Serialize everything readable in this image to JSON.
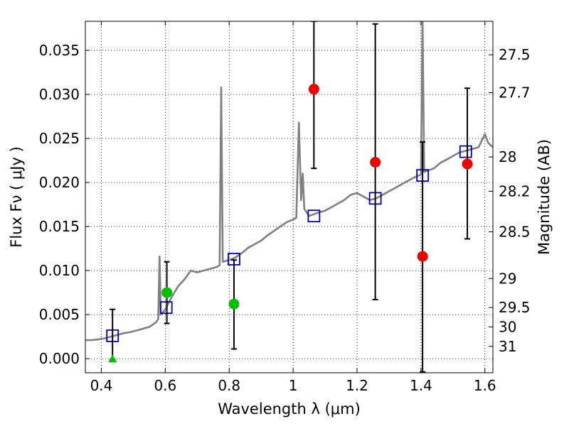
{
  "chart_data": {
    "type": "scatter",
    "title": "",
    "xlabel": "Wavelength  λ (μm)",
    "ylabel": "Flux  Fν  ( μJy )",
    "ylabel_right": "Magnitude (AB)",
    "xlim": [
      0.35,
      1.625
    ],
    "ylim": [
      -0.0016,
      0.0383
    ],
    "x_ticks": [
      0.4,
      0.6,
      0.8,
      1.0,
      1.2,
      1.4,
      1.6
    ],
    "x_tick_labels": [
      "0.4",
      "0.6",
      "0.8",
      "1",
      "1.2",
      "1.4",
      "1.6"
    ],
    "y_ticks": [
      0.0,
      0.005,
      0.01,
      0.015,
      0.02,
      0.025,
      0.03,
      0.035
    ],
    "y_tick_labels": [
      "0.000",
      "0.005",
      "0.010",
      "0.015",
      "0.020",
      "0.025",
      "0.030",
      "0.035"
    ],
    "right_ticks": [
      {
        "label": "27.5",
        "flux": 0.0345
      },
      {
        "label": "27.7",
        "flux": 0.0302
      },
      {
        "label": "28",
        "flux": 0.0229
      },
      {
        "label": "28.2",
        "flux": 0.019
      },
      {
        "label": "28.5",
        "flux": 0.0144
      },
      {
        "label": "29",
        "flux": 0.0091
      },
      {
        "label": "29.5",
        "flux": 0.0058
      },
      {
        "label": "30",
        "flux": 0.0036
      },
      {
        "label": "31",
        "flux": 0.0014
      }
    ],
    "grid": true,
    "series": [
      {
        "kind": "line",
        "color": "#808080",
        "points": [
          [
            0.35,
            0.0021
          ],
          [
            0.37,
            0.0021
          ],
          [
            0.39,
            0.0022
          ],
          [
            0.41,
            0.0023
          ],
          [
            0.43,
            0.0025
          ],
          [
            0.45,
            0.0027
          ],
          [
            0.47,
            0.0029
          ],
          [
            0.49,
            0.003
          ],
          [
            0.51,
            0.0032
          ],
          [
            0.53,
            0.0034
          ],
          [
            0.55,
            0.0036
          ],
          [
            0.57,
            0.0041
          ],
          [
            0.578,
            0.0045
          ],
          [
            0.582,
            0.0116
          ],
          [
            0.586,
            0.005
          ],
          [
            0.6,
            0.0056
          ],
          [
            0.62,
            0.007
          ],
          [
            0.64,
            0.0082
          ],
          [
            0.66,
            0.009
          ],
          [
            0.68,
            0.01
          ],
          [
            0.7,
            0.0098
          ],
          [
            0.72,
            0.01
          ],
          [
            0.74,
            0.0102
          ],
          [
            0.76,
            0.0104
          ],
          [
            0.77,
            0.0106
          ],
          [
            0.775,
            0.0308
          ],
          [
            0.78,
            0.011
          ],
          [
            0.8,
            0.0112
          ],
          [
            0.82,
            0.0115
          ],
          [
            0.84,
            0.012
          ],
          [
            0.86,
            0.0126
          ],
          [
            0.88,
            0.013
          ],
          [
            0.9,
            0.0134
          ],
          [
            0.92,
            0.014
          ],
          [
            0.94,
            0.0145
          ],
          [
            0.96,
            0.015
          ],
          [
            0.98,
            0.0155
          ],
          [
            1.0,
            0.0158
          ],
          [
            1.01,
            0.016
          ],
          [
            1.018,
            0.0268
          ],
          [
            1.025,
            0.018
          ],
          [
            1.03,
            0.021
          ],
          [
            1.035,
            0.017
          ],
          [
            1.05,
            0.0162
          ],
          [
            1.08,
            0.0166
          ],
          [
            1.1,
            0.0168
          ],
          [
            1.12,
            0.0172
          ],
          [
            1.14,
            0.0176
          ],
          [
            1.16,
            0.018
          ],
          [
            1.18,
            0.0186
          ],
          [
            1.2,
            0.0188
          ],
          [
            1.22,
            0.0184
          ],
          [
            1.24,
            0.018
          ],
          [
            1.26,
            0.0182
          ],
          [
            1.28,
            0.0186
          ],
          [
            1.3,
            0.019
          ],
          [
            1.32,
            0.0194
          ],
          [
            1.34,
            0.0198
          ],
          [
            1.36,
            0.0202
          ],
          [
            1.38,
            0.0206
          ],
          [
            1.4,
            0.0209
          ],
          [
            1.405,
            0.0383
          ],
          [
            1.41,
            0.0212
          ],
          [
            1.44,
            0.0216
          ],
          [
            1.46,
            0.0222
          ],
          [
            1.48,
            0.0226
          ],
          [
            1.5,
            0.023
          ],
          [
            1.52,
            0.0234
          ],
          [
            1.54,
            0.0236
          ],
          [
            1.56,
            0.0238
          ],
          [
            1.58,
            0.024
          ],
          [
            1.6,
            0.0255
          ],
          [
            1.61,
            0.0245
          ],
          [
            1.625,
            0.024
          ]
        ]
      },
      {
        "kind": "marker",
        "marker": "square",
        "color": "#0000cc",
        "points": [
          [
            0.435,
            0.0026
          ],
          [
            0.603,
            0.0058
          ],
          [
            0.815,
            0.0113
          ],
          [
            1.065,
            0.0162
          ],
          [
            1.257,
            0.0182
          ],
          [
            1.405,
            0.0208
          ],
          [
            1.54,
            0.0235
          ]
        ]
      },
      {
        "kind": "marker",
        "marker": "circle",
        "color": "#ee0000",
        "points": [
          {
            "x": 1.065,
            "y": 0.0306,
            "yerr_low": 0.0216,
            "yerr_high": 0.0383
          },
          {
            "x": 1.257,
            "y": 0.0223,
            "yerr_low": 0.0067,
            "yerr_high": 0.038
          },
          {
            "x": 1.405,
            "y": 0.0116,
            "yerr_low": -0.0015,
            "yerr_high": 0.0246
          },
          {
            "x": 1.545,
            "y": 0.0221,
            "yerr_low": 0.0136,
            "yerr_high": 0.0307
          }
        ]
      },
      {
        "kind": "marker",
        "marker": "circle",
        "color": "#00c000",
        "points": [
          {
            "x": 0.605,
            "y": 0.0075,
            "yerr_low": 0.004,
            "yerr_high": 0.011
          },
          {
            "x": 0.815,
            "y": 0.0062,
            "yerr_low": 0.0011,
            "yerr_high": 0.0112
          }
        ]
      },
      {
        "kind": "marker",
        "marker": "triangle-up",
        "color": "#00c000",
        "points": [
          {
            "x": 0.435,
            "y": -0.0001,
            "yerr_low": -0.0001,
            "yerr_high": 0.0056
          }
        ]
      }
    ]
  }
}
